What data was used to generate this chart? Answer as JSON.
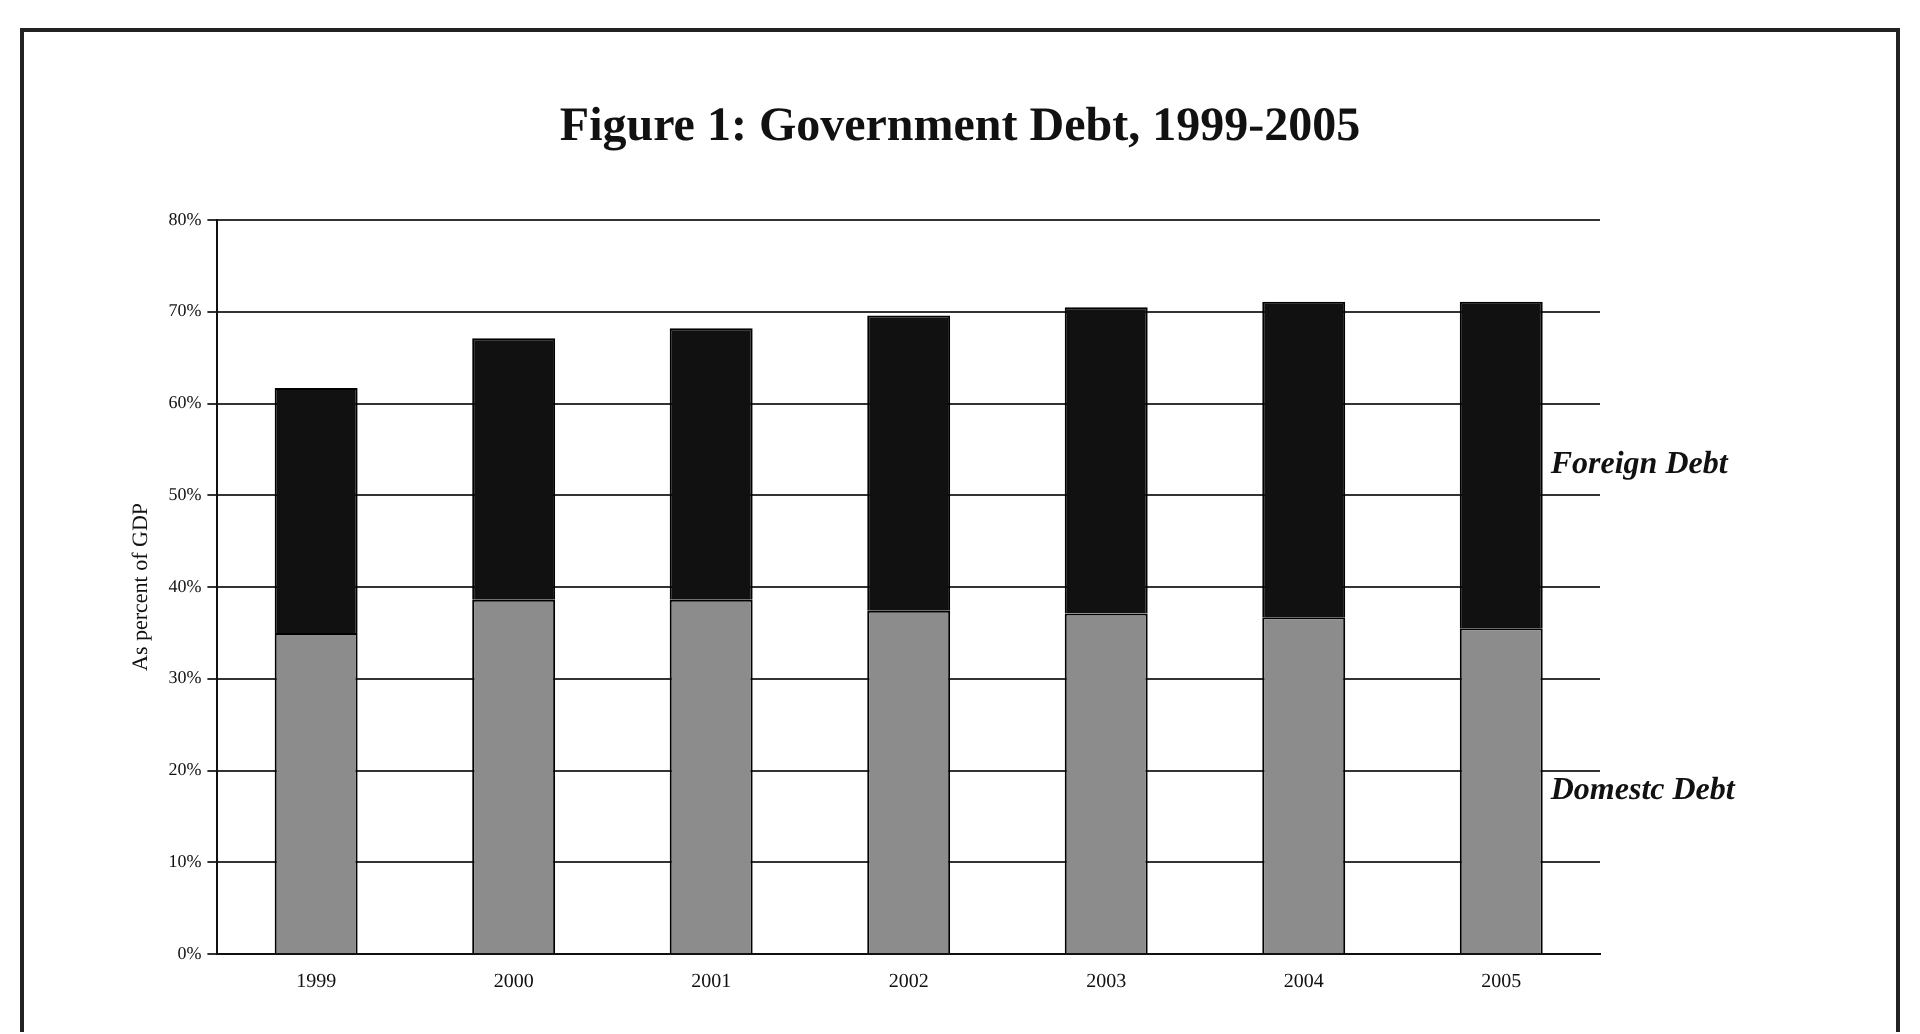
{
  "chart_data": {
    "type": "bar",
    "title": "Figure 1: Government Debt, 1999-2005",
    "ylabel": "As percent of GDP",
    "categories": [
      "1999",
      "2000",
      "2001",
      "2002",
      "2003",
      "2004",
      "2005"
    ],
    "stacked": true,
    "series": [
      {
        "name": "Domestc Debt",
        "color": "#8c8c8c",
        "values": [
          35.0,
          38.6,
          38.6,
          37.4,
          37.1,
          36.7,
          35.5
        ]
      },
      {
        "name": "Foreign Debt",
        "color": "#111111",
        "values": [
          26.7,
          28.5,
          29.6,
          32.2,
          33.4,
          34.4,
          35.6
        ]
      }
    ],
    "ylim": [
      0,
      80
    ],
    "yticks": [
      {
        "value": 0,
        "label": "0%"
      },
      {
        "value": 10,
        "label": "10%"
      },
      {
        "value": 20,
        "label": "20%"
      },
      {
        "value": 30,
        "label": "30%"
      },
      {
        "value": 40,
        "label": "40%"
      },
      {
        "value": 50,
        "label": "50%"
      },
      {
        "value": 60,
        "label": "60%"
      },
      {
        "value": 70,
        "label": "70%"
      },
      {
        "value": 80,
        "label": "80%"
      }
    ],
    "grid": "y",
    "legend": false
  }
}
